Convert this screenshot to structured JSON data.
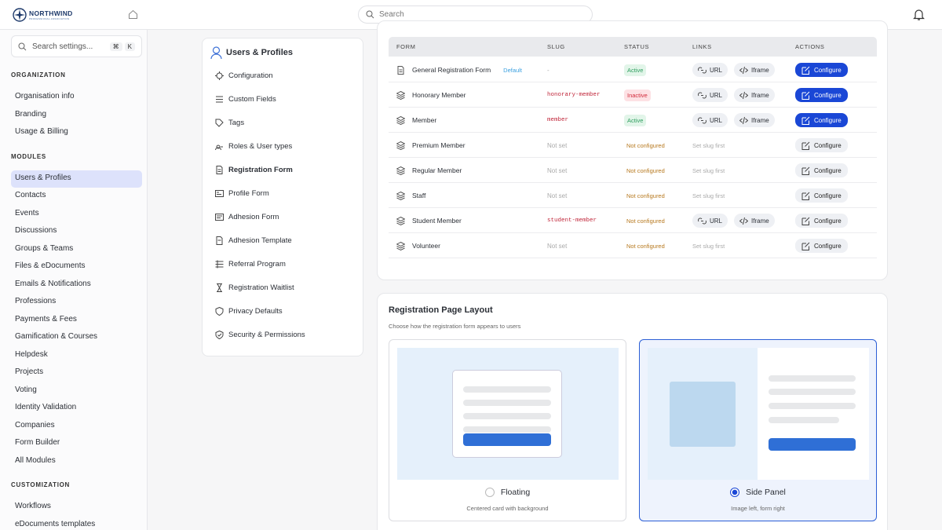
{
  "brand": {
    "name": "NORTHWIND",
    "tagline": "PROFESSIONAL ASSOCIATION"
  },
  "search": {
    "placeholder": "Search"
  },
  "sidebar": {
    "search": "Search settings...",
    "shortcut": [
      "⌘",
      "K"
    ],
    "sections": [
      {
        "title": "ORGANIZATION",
        "items": [
          {
            "label": "Organisation info"
          },
          {
            "label": "Branding"
          },
          {
            "label": "Usage & Billing"
          }
        ]
      },
      {
        "title": "MODULES",
        "items": [
          {
            "label": "Users & Profiles",
            "active": true
          },
          {
            "label": "Contacts"
          },
          {
            "label": "Events"
          },
          {
            "label": "Discussions"
          },
          {
            "label": "Groups & Teams"
          },
          {
            "label": "Files & eDocuments"
          },
          {
            "label": "Emails & Notifications"
          },
          {
            "label": "Professions"
          },
          {
            "label": "Payments & Fees"
          },
          {
            "label": "Gamification & Courses"
          },
          {
            "label": "Helpdesk"
          },
          {
            "label": "Projects"
          },
          {
            "label": "Voting"
          },
          {
            "label": "Identity Validation"
          },
          {
            "label": "Companies"
          },
          {
            "label": "Form Builder"
          },
          {
            "label": "All Modules"
          }
        ]
      },
      {
        "title": "CUSTOMIZATION",
        "items": [
          {
            "label": "Workflows"
          },
          {
            "label": "eDocuments templates"
          }
        ]
      }
    ]
  },
  "subnav": {
    "title": "Users & Profiles",
    "items": [
      {
        "label": "Configuration"
      },
      {
        "label": "Custom Fields"
      },
      {
        "label": "Tags"
      },
      {
        "label": "Roles & User types"
      },
      {
        "label": "Registration Form",
        "active": true
      },
      {
        "label": "Profile Form"
      },
      {
        "label": "Adhesion Form"
      },
      {
        "label": "Adhesion Template"
      },
      {
        "label": "Referral Program"
      },
      {
        "label": "Registration Waitlist"
      },
      {
        "label": "Privacy Defaults"
      },
      {
        "label": "Security & Permissions"
      }
    ]
  },
  "table": {
    "headers": [
      "FORM",
      "SLUG",
      "STATUS",
      "LINKS",
      "ACTIONS"
    ],
    "rows": [
      {
        "form": "General Registration Form",
        "badge": "Default",
        "slug": "-",
        "status": "Active",
        "status_tone": "success",
        "links": [
          "URL",
          "Iframe"
        ],
        "action": "Configure",
        "action_primary": true
      },
      {
        "form": "Honorary Member",
        "slug": "honorary-member",
        "slug_code": true,
        "status": "Inactive",
        "status_tone": "danger",
        "links": [
          "URL",
          "Iframe"
        ],
        "action": "Configure",
        "action_primary": true
      },
      {
        "form": "Member",
        "slug": "member",
        "slug_code": true,
        "status": "Active",
        "status_tone": "success",
        "links": [
          "URL",
          "Iframe"
        ],
        "action": "Configure",
        "action_primary": true
      },
      {
        "form": "Premium Member",
        "slug": "Not set",
        "status": "Not configured",
        "status_tone": "warning",
        "links_note": "Set slug first",
        "action": "Configure"
      },
      {
        "form": "Regular Member",
        "slug": "Not set",
        "status": "Not configured",
        "status_tone": "warning",
        "links_note": "Set slug first",
        "action": "Configure"
      },
      {
        "form": "Staff",
        "slug": "Not set",
        "status": "Not configured",
        "status_tone": "warning",
        "links_note": "Set slug first",
        "action": "Configure"
      },
      {
        "form": "Student Member",
        "slug": "student-member",
        "slug_code": true,
        "status": "Not configured",
        "status_tone": "warning",
        "links": [
          "URL",
          "Iframe"
        ],
        "action": "Configure"
      },
      {
        "form": "Volunteer",
        "slug": "Not set",
        "status": "Not configured",
        "status_tone": "warning",
        "links_note": "Set slug first",
        "action": "Configure"
      }
    ]
  },
  "layout": {
    "title": "Registration Page Layout",
    "subtitle": "Choose how the registration form appears to users",
    "options": [
      {
        "label": "Floating",
        "description": "Centered card with background",
        "selected": false,
        "style": "floating"
      },
      {
        "label": "Side Panel",
        "description": "Image left, form right",
        "selected": true,
        "style": "side"
      }
    ]
  }
}
